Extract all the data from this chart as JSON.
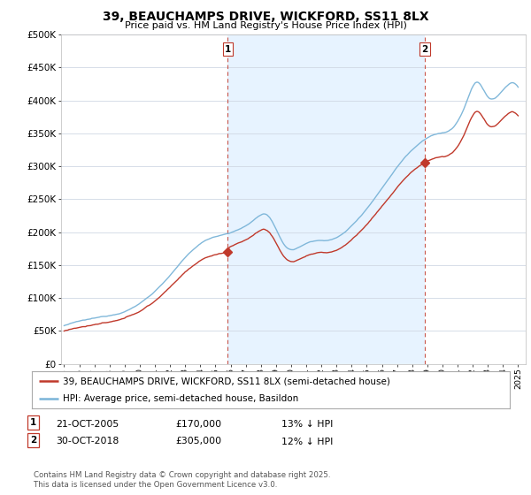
{
  "title": "39, BEAUCHAMPS DRIVE, WICKFORD, SS11 8LX",
  "subtitle": "Price paid vs. HM Land Registry's House Price Index (HPI)",
  "ylim": [
    0,
    500000
  ],
  "yticks": [
    0,
    50000,
    100000,
    150000,
    200000,
    250000,
    300000,
    350000,
    400000,
    450000,
    500000
  ],
  "ytick_labels": [
    "£0",
    "£50K",
    "£100K",
    "£150K",
    "£200K",
    "£250K",
    "£300K",
    "£350K",
    "£400K",
    "£450K",
    "£500K"
  ],
  "sale1_date": 2005.82,
  "sale1_price": 170000,
  "sale2_date": 2018.83,
  "sale2_price": 305000,
  "hpi_color": "#7ab4d8",
  "price_color": "#c0392b",
  "vline_color": "#c0392b",
  "shade_color": "#ddeeff",
  "legend1_label": "39, BEAUCHAMPS DRIVE, WICKFORD, SS11 8LX (semi-detached house)",
  "legend2_label": "HPI: Average price, semi-detached house, Basildon",
  "footnote": "Contains HM Land Registry data © Crown copyright and database right 2025.\nThis data is licensed under the Open Government Licence v3.0.",
  "table_row1": [
    "1",
    "21-OCT-2005",
    "£170,000",
    "13% ↓ HPI"
  ],
  "table_row2": [
    "2",
    "30-OCT-2018",
    "£305,000",
    "12% ↓ HPI"
  ],
  "bg_color": "#ffffff",
  "grid_color": "#d0d8e4"
}
